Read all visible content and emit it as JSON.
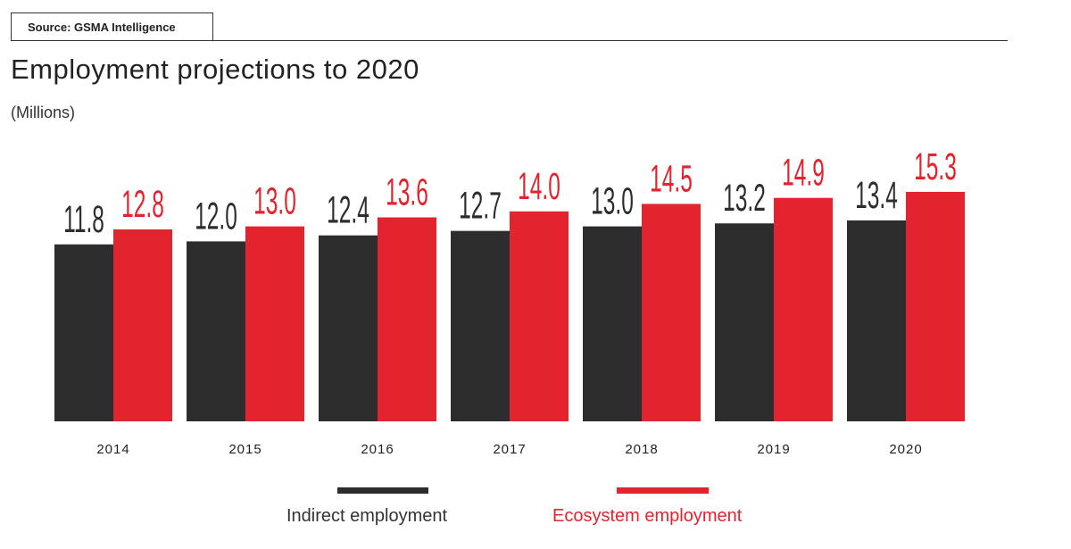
{
  "source": "Source: GSMA Intelligence",
  "chart_data": {
    "type": "bar",
    "title": "Employment projections to 2020",
    "subtitle": "(Millions)",
    "categories": [
      "2014",
      "2015",
      "2016",
      "2017",
      "2018",
      "2019",
      "2020"
    ],
    "series": [
      {
        "name": "Indirect employment",
        "color": "#2d2d2d",
        "values": [
          11.8,
          12.0,
          12.4,
          12.7,
          13.0,
          13.2,
          13.4
        ]
      },
      {
        "name": "Ecosystem employment",
        "color": "#e3242f",
        "values": [
          12.8,
          13.0,
          13.6,
          14.0,
          14.5,
          14.9,
          15.3
        ]
      }
    ],
    "value_labels": {
      "Indirect employment": [
        "11.8",
        "12.0",
        "12.4",
        "12.7",
        "13.0",
        "13.2",
        "13.4"
      ],
      "Ecosystem employment": [
        "12.8",
        "13.0",
        "13.6",
        "14.0",
        "14.5",
        "14.9",
        "15.3"
      ]
    },
    "xlabel": "",
    "ylabel": "",
    "ylim": [
      0,
      20
    ],
    "grid": false,
    "legend_position": "bottom"
  }
}
